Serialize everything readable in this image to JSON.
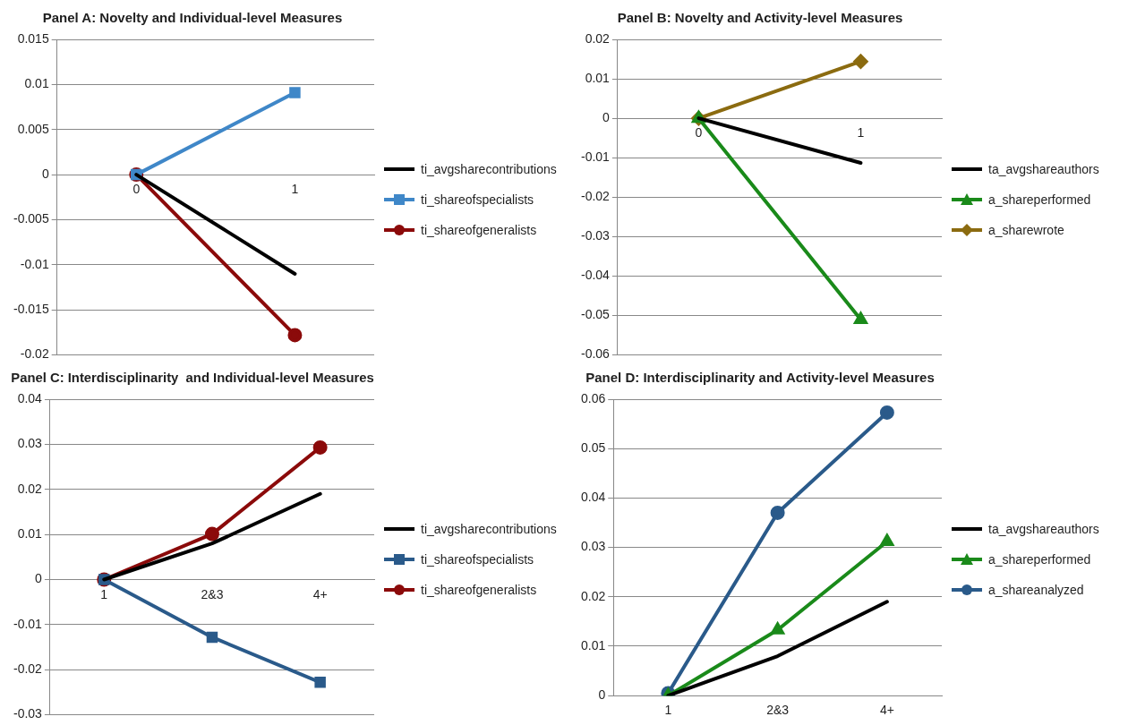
{
  "chart_data": [
    {
      "type": "line",
      "title": "Panel A: Novelty and Individual-level Measures",
      "categories": [
        "0",
        "1"
      ],
      "ylim": [
        -0.02,
        0.015
      ],
      "yticks": [
        -0.02,
        -0.015,
        -0.01,
        -0.005,
        0,
        0.005,
        0.01,
        0.015
      ],
      "grid": "y",
      "legend": "right",
      "series": [
        {
          "name": "ti_avgsharecontributions",
          "color": "#000000",
          "marker": "none",
          "values": [
            0,
            -0.011
          ]
        },
        {
          "name": "ti_shareofspecialists",
          "color": "#3f87c8",
          "marker": "square",
          "values": [
            0,
            0.0091
          ]
        },
        {
          "name": "ti_shareofgeneralists",
          "color": "#8b0a0a",
          "marker": "circle",
          "values": [
            0,
            -0.0178
          ]
        }
      ]
    },
    {
      "type": "line",
      "title": "Panel B: Novelty and Activity-level Measures",
      "categories": [
        "0",
        "1"
      ],
      "ylim": [
        -0.06,
        0.02
      ],
      "yticks": [
        -0.06,
        -0.05,
        -0.04,
        -0.03,
        -0.02,
        -0.01,
        0,
        0.01,
        0.02
      ],
      "grid": "y",
      "legend": "right",
      "series": [
        {
          "name": "ta_avgshareauthors",
          "color": "#000000",
          "marker": "none",
          "values": [
            0,
            -0.0113
          ]
        },
        {
          "name": "a_shareperformed",
          "color": "#1a8a1a",
          "marker": "triangle",
          "values": [
            0,
            -0.051
          ]
        },
        {
          "name": "a_sharewrote",
          "color": "#8b6b10",
          "marker": "diamond",
          "values": [
            0,
            0.0144
          ]
        }
      ]
    },
    {
      "type": "line",
      "title": "Panel C: Interdisciplinarity  and Individual-level Measures",
      "categories": [
        "1",
        "2&3",
        "4+"
      ],
      "ylim": [
        -0.03,
        0.04
      ],
      "yticks": [
        -0.03,
        -0.02,
        -0.01,
        0,
        0.01,
        0.02,
        0.03,
        0.04
      ],
      "grid": "y",
      "legend": "right",
      "series": [
        {
          "name": "ti_avgsharecontributions",
          "color": "#000000",
          "marker": "none",
          "values": [
            0,
            0.008,
            0.019
          ]
        },
        {
          "name": "ti_shareofspecialists",
          "color": "#2a5a8a",
          "marker": "square",
          "values": [
            0,
            -0.0128,
            -0.0228
          ]
        },
        {
          "name": "ti_shareofgeneralists",
          "color": "#8b0a0a",
          "marker": "circle",
          "values": [
            0,
            0.0101,
            0.0293
          ]
        }
      ]
    },
    {
      "type": "line",
      "title": "Panel D: Interdisciplinarity and Activity-level Measures",
      "categories": [
        "1",
        "2&3",
        "4+"
      ],
      "ylim": [
        0,
        0.06
      ],
      "yticks": [
        0,
        0.01,
        0.02,
        0.03,
        0.04,
        0.05,
        0.06
      ],
      "grid": "y",
      "legend": "right",
      "series": [
        {
          "name": "ta_avgshareauthors",
          "color": "#000000",
          "marker": "none",
          "values": [
            0,
            0.008,
            0.019
          ]
        },
        {
          "name": "a_shareperformed",
          "color": "#1a8a1a",
          "marker": "triangle",
          "values": [
            0,
            0.0133,
            0.0312
          ]
        },
        {
          "name": "a_shareanalyzed",
          "color": "#2a5a8a",
          "marker": "circle",
          "values": [
            0.0005,
            0.037,
            0.0573
          ]
        }
      ]
    }
  ]
}
